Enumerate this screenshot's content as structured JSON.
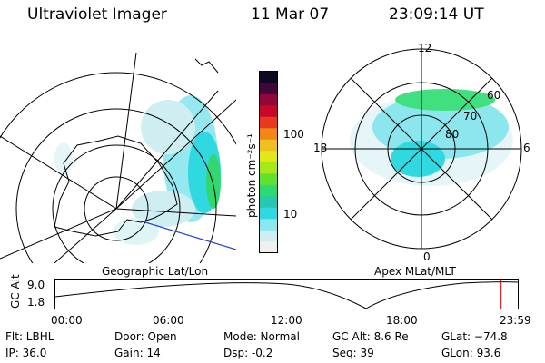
{
  "header": {
    "title": "Ultraviolet Imager",
    "date": "11 Mar 07",
    "time": "23:09:14 UT"
  },
  "colorbar": {
    "label": "photon cm⁻²s⁻¹",
    "tick_100": "100",
    "tick_10": "10",
    "colors": [
      "#f0f0f0",
      "#cfeef2",
      "#8be6ee",
      "#30d8e0",
      "#28c8b0",
      "#30d870",
      "#60e030",
      "#a8e818",
      "#e0e818",
      "#f0c020",
      "#f08818",
      "#e83820",
      "#c80828",
      "#900838",
      "#400838",
      "#100820"
    ]
  },
  "left_map": {
    "caption": "Geographic Lat/Lon"
  },
  "right_map": {
    "caption": "Apex MLat/MLT",
    "mlt_top": "12",
    "mlt_bottom": "0",
    "mlt_left": "18",
    "mlt_right": "6",
    "lat_60": "60",
    "lat_70": "70",
    "lat_80": "80"
  },
  "timeline": {
    "ylabel": "GC Alt",
    "ymax": "9.0",
    "ymin": "1.8",
    "ticks": [
      "00:00",
      "06:00",
      "12:00",
      "18:00",
      "23:59"
    ],
    "marker_fraction": 0.964
  },
  "info": {
    "flt": "Flt: LBHL",
    "ip": "IP: 36.0",
    "door": "Door: Open",
    "gain": "Gain: 14",
    "mode": "Mode: Normal",
    "dsp": "Dsp:    -0.2",
    "gcalt": "GC Alt: 8.6 Re",
    "seq": "Seq: 39",
    "glat": "GLat: −74.8",
    "glon": "GLon:  93.6"
  }
}
